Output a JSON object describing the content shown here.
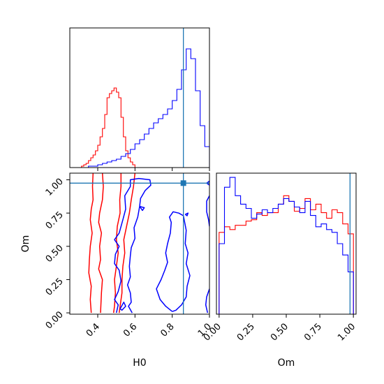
{
  "chart_data": {
    "type": "corner",
    "params": [
      "H0",
      "Om"
    ],
    "truth": {
      "H0": 0.86,
      "Om": 0.975
    },
    "colors": {
      "series_a": "#ff0000",
      "series_b": "#0000ff",
      "truth": "#1f77b4"
    },
    "panels": [
      {
        "id": "h0-hist",
        "type": "histogram",
        "x_range": [
          0.25,
          1.0
        ],
        "xticks": [
          0.4,
          0.6,
          0.8,
          1.0
        ],
        "y_range": [
          0,
          1
        ],
        "series": [
          {
            "color": "red",
            "bin_edges": [
              0.3,
              0.3125,
              0.325,
              0.3375,
              0.35,
              0.3625,
              0.375,
              0.3875,
              0.4,
              0.4125,
              0.425,
              0.4375,
              0.45,
              0.4625,
              0.475,
              0.4875,
              0.5,
              0.5125,
              0.525,
              0.5375,
              0.55,
              0.5625,
              0.575,
              0.5875,
              0.6
            ],
            "values": [
              0.0,
              0.01,
              0.02,
              0.03,
              0.05,
              0.07,
              0.09,
              0.12,
              0.16,
              0.22,
              0.28,
              0.38,
              0.5,
              0.53,
              0.55,
              0.57,
              0.54,
              0.5,
              0.36,
              0.22,
              0.12,
              0.07,
              0.04,
              0.02
            ]
          },
          {
            "color": "blue",
            "bin_edges": [
              0.3,
              0.35,
              0.4,
              0.425,
              0.45,
              0.475,
              0.5,
              0.525,
              0.55,
              0.575,
              0.6,
              0.625,
              0.65,
              0.675,
              0.7,
              0.725,
              0.75,
              0.775,
              0.8,
              0.825,
              0.85,
              0.875,
              0.9,
              0.925,
              0.95,
              0.975,
              1.0
            ],
            "values": [
              0.0,
              0.01,
              0.02,
              0.03,
              0.04,
              0.05,
              0.06,
              0.08,
              0.1,
              0.13,
              0.17,
              0.2,
              0.24,
              0.28,
              0.32,
              0.35,
              0.38,
              0.42,
              0.48,
              0.56,
              0.7,
              0.85,
              0.78,
              0.55,
              0.3,
              0.15
            ]
          }
        ]
      },
      {
        "id": "om-hist",
        "type": "histogram",
        "x_range": [
          -0.02,
          1.02
        ],
        "xticks": [
          0.0,
          0.25,
          0.5,
          0.75,
          1.0
        ],
        "xtick_labels": [
          "0.00",
          "0.25",
          "0.50",
          "0.75",
          "1.00"
        ],
        "xlabel": "Om",
        "y_range": [
          0,
          1
        ],
        "series": [
          {
            "color": "red",
            "bin_edges": [
              0.0,
              0.04,
              0.08,
              0.12,
              0.16,
              0.2,
              0.24,
              0.28,
              0.32,
              0.36,
              0.4,
              0.44,
              0.48,
              0.52,
              0.56,
              0.6,
              0.64,
              0.68,
              0.72,
              0.76,
              0.8,
              0.84,
              0.88,
              0.92,
              0.96,
              1.0
            ],
            "values": [
              0.58,
              0.62,
              0.6,
              0.63,
              0.63,
              0.66,
              0.67,
              0.72,
              0.7,
              0.72,
              0.72,
              0.78,
              0.84,
              0.8,
              0.73,
              0.75,
              0.82,
              0.74,
              0.78,
              0.72,
              0.68,
              0.74,
              0.72,
              0.64,
              0.57
            ]
          },
          {
            "color": "blue",
            "bin_edges": [
              0.0,
              0.04,
              0.08,
              0.12,
              0.16,
              0.2,
              0.24,
              0.28,
              0.32,
              0.36,
              0.4,
              0.44,
              0.48,
              0.52,
              0.56,
              0.6,
              0.64,
              0.68,
              0.72,
              0.76,
              0.8,
              0.84,
              0.88,
              0.92,
              0.96,
              1.0
            ],
            "values": [
              0.5,
              0.9,
              0.97,
              0.84,
              0.78,
              0.75,
              0.68,
              0.71,
              0.74,
              0.72,
              0.75,
              0.78,
              0.82,
              0.8,
              0.76,
              0.72,
              0.8,
              0.7,
              0.62,
              0.64,
              0.6,
              0.58,
              0.5,
              0.42,
              0.3
            ]
          }
        ]
      },
      {
        "id": "h0-om-contour",
        "type": "contour",
        "x_range": [
          0.25,
          1.0
        ],
        "y_range": [
          -0.01,
          1.05
        ],
        "xticks": [
          0.4,
          0.6,
          0.8,
          1.0
        ],
        "xtick_labels": [
          "0.4",
          "0.6",
          "0.8",
          "1.0"
        ],
        "yticks": [
          0.0,
          0.25,
          0.5,
          0.75,
          1.0
        ],
        "ytick_labels": [
          "0.00",
          "0.25",
          "0.50",
          "0.75",
          "1.00"
        ],
        "xlabel": "H0",
        "ylabel": "Om",
        "contours": [
          {
            "color": "red",
            "points": [
              [
                0.375,
                1.05
              ],
              [
                0.372,
                0.95
              ],
              [
                0.375,
                0.85
              ],
              [
                0.365,
                0.78
              ],
              [
                0.36,
                0.7
              ],
              [
                0.37,
                0.6
              ],
              [
                0.36,
                0.5
              ],
              [
                0.355,
                0.4
              ],
              [
                0.352,
                0.3
              ],
              [
                0.365,
                0.2
              ],
              [
                0.36,
                0.1
              ],
              [
                0.365,
                0.0
              ]
            ]
          },
          {
            "color": "red",
            "points": [
              [
                0.425,
                1.05
              ],
              [
                0.43,
                0.95
              ],
              [
                0.425,
                0.85
              ],
              [
                0.41,
                0.75
              ],
              [
                0.405,
                0.68
              ],
              [
                0.42,
                0.6
              ],
              [
                0.41,
                0.5
              ],
              [
                0.415,
                0.4
              ],
              [
                0.405,
                0.33
              ],
              [
                0.425,
                0.25
              ],
              [
                0.42,
                0.15
              ],
              [
                0.415,
                0.0
              ]
            ]
          },
          {
            "color": "red",
            "points": [
              [
                0.525,
                1.05
              ],
              [
                0.525,
                0.95
              ],
              [
                0.518,
                0.85
              ],
              [
                0.52,
                0.75
              ],
              [
                0.505,
                0.65
              ],
              [
                0.5,
                0.55
              ],
              [
                0.51,
                0.45
              ],
              [
                0.5,
                0.35
              ],
              [
                0.49,
                0.25
              ],
              [
                0.495,
                0.15
              ],
              [
                0.49,
                0.05
              ],
              [
                0.485,
                0.0
              ]
            ]
          },
          {
            "color": "red",
            "points": [
              [
                0.6,
                1.05
              ],
              [
                0.592,
                0.95
              ],
              [
                0.58,
                0.85
              ],
              [
                0.57,
                0.75
              ],
              [
                0.555,
                0.65
              ],
              [
                0.54,
                0.55
              ],
              [
                0.545,
                0.45
              ],
              [
                0.535,
                0.35
              ],
              [
                0.53,
                0.25
              ],
              [
                0.53,
                0.15
              ],
              [
                0.52,
                0.05
              ],
              [
                0.515,
                0.0
              ]
            ]
          },
          {
            "color": "blue",
            "points": [
              [
                0.5,
                0.0
              ],
              [
                0.51,
                0.06
              ],
              [
                0.49,
                0.1
              ],
              [
                0.51,
                0.16
              ],
              [
                0.525,
                0.24
              ],
              [
                0.515,
                0.32
              ],
              [
                0.49,
                0.37
              ],
              [
                0.495,
                0.44
              ],
              [
                0.515,
                0.5
              ],
              [
                0.49,
                0.55
              ],
              [
                0.515,
                0.6
              ],
              [
                0.535,
                0.7
              ],
              [
                0.55,
                0.78
              ],
              [
                0.545,
                0.88
              ],
              [
                0.575,
                0.95
              ],
              [
                0.575,
                1.0
              ],
              [
                0.62,
                1.01
              ],
              [
                0.68,
                1.0
              ],
              [
                0.685,
                0.96
              ],
              [
                0.655,
                0.92
              ],
              [
                0.63,
                0.86
              ],
              [
                0.625,
                0.8
              ],
              [
                0.615,
                0.72
              ],
              [
                0.595,
                0.64
              ],
              [
                0.6,
                0.56
              ],
              [
                0.58,
                0.49
              ],
              [
                0.575,
                0.43
              ],
              [
                0.57,
                0.35
              ],
              [
                0.575,
                0.27
              ],
              [
                0.56,
                0.21
              ],
              [
                0.575,
                0.15
              ],
              [
                0.58,
                0.08
              ],
              [
                0.565,
                0.05
              ],
              [
                0.585,
                0.0
              ]
            ]
          },
          {
            "color": "blue",
            "points": [
              [
                0.52,
                0.03
              ],
              [
                0.54,
                0.08
              ],
              [
                0.55,
                0.05
              ],
              [
                0.53,
                0.02
              ],
              [
                0.52,
                0.03
              ]
            ]
          },
          {
            "color": "blue",
            "points": [
              [
                0.625,
                0.8
              ],
              [
                0.65,
                0.79
              ],
              [
                0.64,
                0.77
              ],
              [
                0.625,
                0.8
              ]
            ]
          },
          {
            "color": "blue",
            "points": [
              [
                0.8,
                0.01
              ],
              [
                0.765,
                0.05
              ],
              [
                0.735,
                0.1
              ],
              [
                0.715,
                0.18
              ],
              [
                0.74,
                0.25
              ],
              [
                0.76,
                0.32
              ],
              [
                0.775,
                0.38
              ],
              [
                0.765,
                0.45
              ],
              [
                0.775,
                0.52
              ],
              [
                0.79,
                0.6
              ],
              [
                0.795,
                0.68
              ],
              [
                0.785,
                0.72
              ],
              [
                0.805,
                0.76
              ],
              [
                0.835,
                0.75
              ],
              [
                0.86,
                0.73
              ],
              [
                0.875,
                0.62
              ],
              [
                0.87,
                0.52
              ],
              [
                0.885,
                0.45
              ],
              [
                0.875,
                0.37
              ],
              [
                0.895,
                0.28
              ],
              [
                0.88,
                0.2
              ],
              [
                0.875,
                0.12
              ],
              [
                0.85,
                0.06
              ],
              [
                0.82,
                0.02
              ],
              [
                0.8,
                0.01
              ]
            ]
          },
          {
            "color": "blue",
            "points": [
              [
                0.87,
                0.74
              ],
              [
                0.885,
                0.75
              ],
              [
                0.88,
                0.73
              ],
              [
                0.87,
                0.74
              ]
            ]
          },
          {
            "color": "blue",
            "points": [
              [
                1.0,
                0.88
              ],
              [
                0.985,
                0.84
              ],
              [
                0.985,
                0.76
              ],
              [
                0.995,
                0.7
              ],
              [
                1.0,
                0.65
              ]
            ]
          },
          {
            "color": "blue",
            "points": [
              [
                1.0,
                0.18
              ],
              [
                0.985,
                0.12
              ],
              [
                0.98,
                0.06
              ],
              [
                0.99,
                0.0
              ]
            ]
          },
          {
            "color": "blue",
            "points": [
              [
                1.0,
                0.99
              ],
              [
                0.985,
                0.975
              ],
              [
                1.0,
                0.96
              ]
            ]
          }
        ]
      }
    ]
  }
}
